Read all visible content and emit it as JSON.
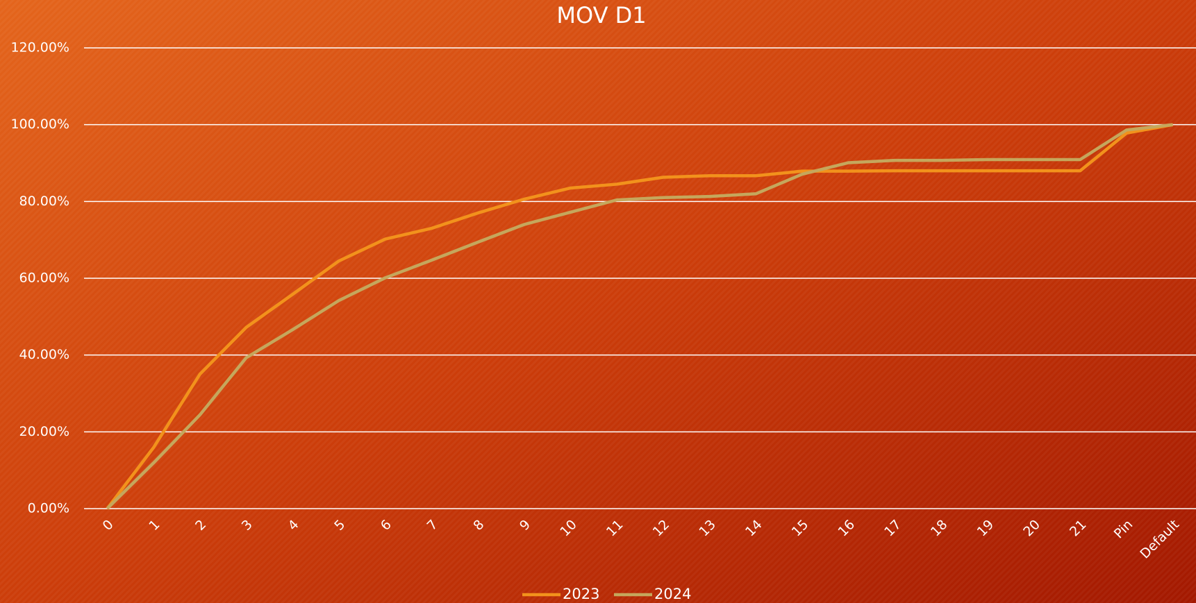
{
  "chart_data": {
    "type": "line",
    "title": "MOV D1",
    "categories": [
      "0",
      "1",
      "2",
      "3",
      "4",
      "5",
      "6",
      "7",
      "8",
      "9",
      "10",
      "11",
      "12",
      "13",
      "14",
      "15",
      "16",
      "17",
      "18",
      "19",
      "20",
      "21",
      "Pin",
      "Default"
    ],
    "series": [
      {
        "name": "2023",
        "color": "#f2921c",
        "values": [
          0,
          15.9,
          35,
          47.2,
          55.8,
          64.5,
          70.2,
          73,
          77,
          80.6,
          83.5,
          84.5,
          86.3,
          86.7,
          86.7,
          87.9,
          87.9,
          88,
          88,
          88,
          88,
          88,
          97.8,
          100
        ]
      },
      {
        "name": "2024",
        "color": "#c5a75c",
        "values": [
          0,
          11.9,
          24.4,
          39.3,
          46.6,
          54.2,
          60.1,
          64.7,
          69.4,
          74,
          77.2,
          80.4,
          81,
          81.3,
          82,
          87.1,
          90.1,
          90.7,
          90.7,
          90.9,
          90.9,
          90.9,
          98.6,
          100
        ]
      }
    ],
    "ylim": [
      0,
      120
    ],
    "yticks": [
      {
        "value": 0,
        "label": "0.00%"
      },
      {
        "value": 20,
        "label": "20.00%"
      },
      {
        "value": 40,
        "label": "40.00%"
      },
      {
        "value": 60,
        "label": "60.00%"
      },
      {
        "value": 80,
        "label": "80.00%"
      },
      {
        "value": 100,
        "label": "100.00%"
      },
      {
        "value": 120,
        "label": "120.00%"
      }
    ],
    "grid": true,
    "legend": "bottom"
  }
}
